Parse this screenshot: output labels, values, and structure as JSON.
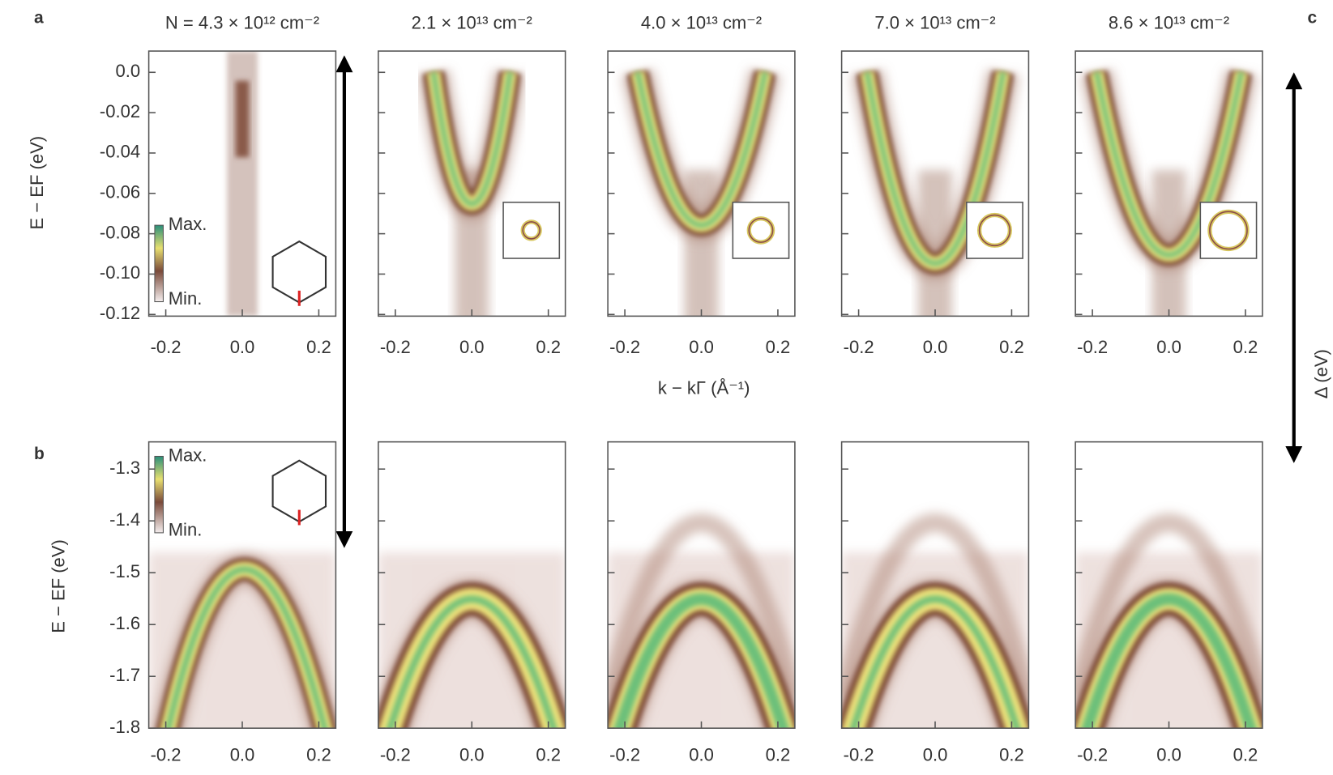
{
  "labels": [
    "a",
    "b",
    "c"
  ],
  "densities": [
    "N = 4.3 × 10¹² cm⁻²",
    "2.1 × 10¹³ cm⁻²",
    "4.0 × 10¹³ cm⁻²",
    "7.0 × 10¹³ cm⁻²",
    "8.6 × 10¹³ cm⁻²"
  ],
  "row_a": {
    "y_axis_label": "E − EF (eV)",
    "y_tick_labels": [
      "0.0",
      "-0.02",
      "-0.04",
      "-0.06",
      "-0.08",
      "-0.10",
      "-0.12"
    ]
  },
  "row_b": {
    "y_axis_label": "E − EF (eV)",
    "y_tick_labels": [
      "-1.3",
      "-1.4",
      "-1.5",
      "-1.6",
      "-1.7",
      "-1.8"
    ]
  },
  "x_tick_labels": [
    "-0.2",
    "0.0",
    "0.2"
  ],
  "x_axis_label": "k − kΓ (Å⁻¹)",
  "colorbar": [
    "Max.",
    "Min."
  ],
  "c_axis_label": "Δ (eV)"
}
